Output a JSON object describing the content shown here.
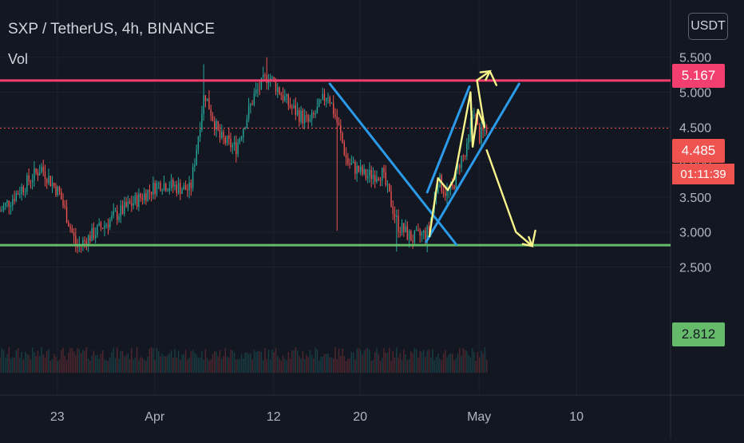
{
  "header": {
    "symbol_title": "SXP / TetherUS, 4h, BINANCE",
    "volume_label": "Vol",
    "currency_button": "USDT"
  },
  "colors": {
    "background": "#131722",
    "grid": "#1e222d",
    "up_candle": "#26a69a",
    "down_candle": "#ef5350",
    "resistance_line": "#f23f6f",
    "support_line": "#66bb6a",
    "trend_channel": "#2b9ae8",
    "projection_path": "#f7f48b",
    "last_price_tag": "#ef5350"
  },
  "price_tags": {
    "resistance": "5.167",
    "last_price": "4.485",
    "countdown": "01:11:39",
    "support": "2.812"
  },
  "chart_data": {
    "type": "candlestick",
    "title": "SXP / TetherUS, 4h, BINANCE",
    "y_ticks": [
      "2.500",
      "3.000",
      "3.500",
      "4.000",
      "4.500",
      "5.000",
      "5.500"
    ],
    "y_tick_values": [
      2.5,
      3.0,
      3.5,
      4.0,
      4.5,
      5.0,
      5.5
    ],
    "ylim": [
      2.22,
      5.78
    ],
    "x_ticks": [
      "23",
      "Apr",
      "12",
      "20",
      "May",
      "10"
    ],
    "x_tick_days": [
      -9,
      0,
      11,
      19,
      30,
      39
    ],
    "xlim_days": [
      -14.3,
      47.7
    ],
    "x_unit": "days from Apr 1",
    "grid": true,
    "horizontal_levels": [
      {
        "name": "resistance",
        "value": 5.167,
        "color": "#f23f6f"
      },
      {
        "name": "support",
        "value": 2.812,
        "color": "#66bb6a"
      },
      {
        "name": "last_price",
        "value": 4.485,
        "color": "#ef5350",
        "style": "dotted"
      }
    ],
    "key_points": [
      {
        "day": -14.3,
        "price": 3.3
      },
      {
        "day": -10.5,
        "price": 3.92
      },
      {
        "day": -8.8,
        "price": 3.55
      },
      {
        "day": -7.2,
        "price": 2.78
      },
      {
        "day": -3.5,
        "price": 3.25
      },
      {
        "day": 0.5,
        "price": 3.7
      },
      {
        "day": 3.3,
        "price": 3.6
      },
      {
        "day": 4.6,
        "price": 5.0
      },
      {
        "day": 6.0,
        "price": 4.35
      },
      {
        "day": 7.5,
        "price": 4.2
      },
      {
        "day": 9.2,
        "price": 4.95
      },
      {
        "day": 10.5,
        "price": 5.25
      },
      {
        "day": 12.5,
        "price": 4.8
      },
      {
        "day": 14.3,
        "price": 4.55
      },
      {
        "day": 16.0,
        "price": 5.0
      },
      {
        "day": 17.0,
        "price": 4.5
      },
      {
        "day": 17.8,
        "price": 4.0
      },
      {
        "day": 19.5,
        "price": 3.8
      },
      {
        "day": 21.0,
        "price": 3.85
      },
      {
        "day": 22.5,
        "price": 3.1
      },
      {
        "day": 23.8,
        "price": 2.9
      },
      {
        "day": 25.3,
        "price": 3.0
      },
      {
        "day": 26.2,
        "price": 3.75
      },
      {
        "day": 27.0,
        "price": 3.55
      },
      {
        "day": 27.5,
        "price": 3.6
      },
      {
        "day": 28.3,
        "price": 4.05
      },
      {
        "day": 28.8,
        "price": 4.1
      },
      {
        "day": 29.5,
        "price": 4.8
      },
      {
        "day": 30.0,
        "price": 4.35
      },
      {
        "day": 30.7,
        "price": 4.485
      }
    ],
    "drawings": {
      "down_trendline": [
        {
          "day": 16.2,
          "price": 5.12
        },
        {
          "day": 27.9,
          "price": 2.82
        }
      ],
      "up_channel_lower": [
        {
          "day": 25.1,
          "price": 2.86
        },
        {
          "day": 33.7,
          "price": 5.12
        }
      ],
      "up_channel_upper": [
        {
          "day": 25.2,
          "price": 3.57
        },
        {
          "day": 29.1,
          "price": 5.08
        }
      ],
      "projection_path": [
        {
          "day": 25.4,
          "price": 2.94
        },
        {
          "day": 26.2,
          "price": 3.77
        },
        {
          "day": 27.1,
          "price": 3.6
        },
        {
          "day": 27.7,
          "price": 3.76
        },
        {
          "day": 29.2,
          "price": 5.0
        },
        {
          "day": 29.4,
          "price": 4.22
        },
        {
          "day": 29.9,
          "price": 4.75
        },
        {
          "day": 30.5,
          "price": 4.5
        },
        {
          "day": 29.8,
          "price": 5.17
        },
        {
          "day": 31.0,
          "price": 5.3
        },
        {
          "day": 31.6,
          "price": 5.1
        }
      ],
      "projection_arrow_up": [
        {
          "day": 31.0,
          "price": 5.1
        },
        {
          "day": 31.0,
          "price": 5.3
        }
      ],
      "projection_down": [
        {
          "day": 30.7,
          "price": 4.17
        },
        {
          "day": 33.4,
          "price": 3.0
        },
        {
          "day": 34.9,
          "price": 2.8
        },
        {
          "day": 35.2,
          "price": 3.02
        }
      ]
    }
  }
}
